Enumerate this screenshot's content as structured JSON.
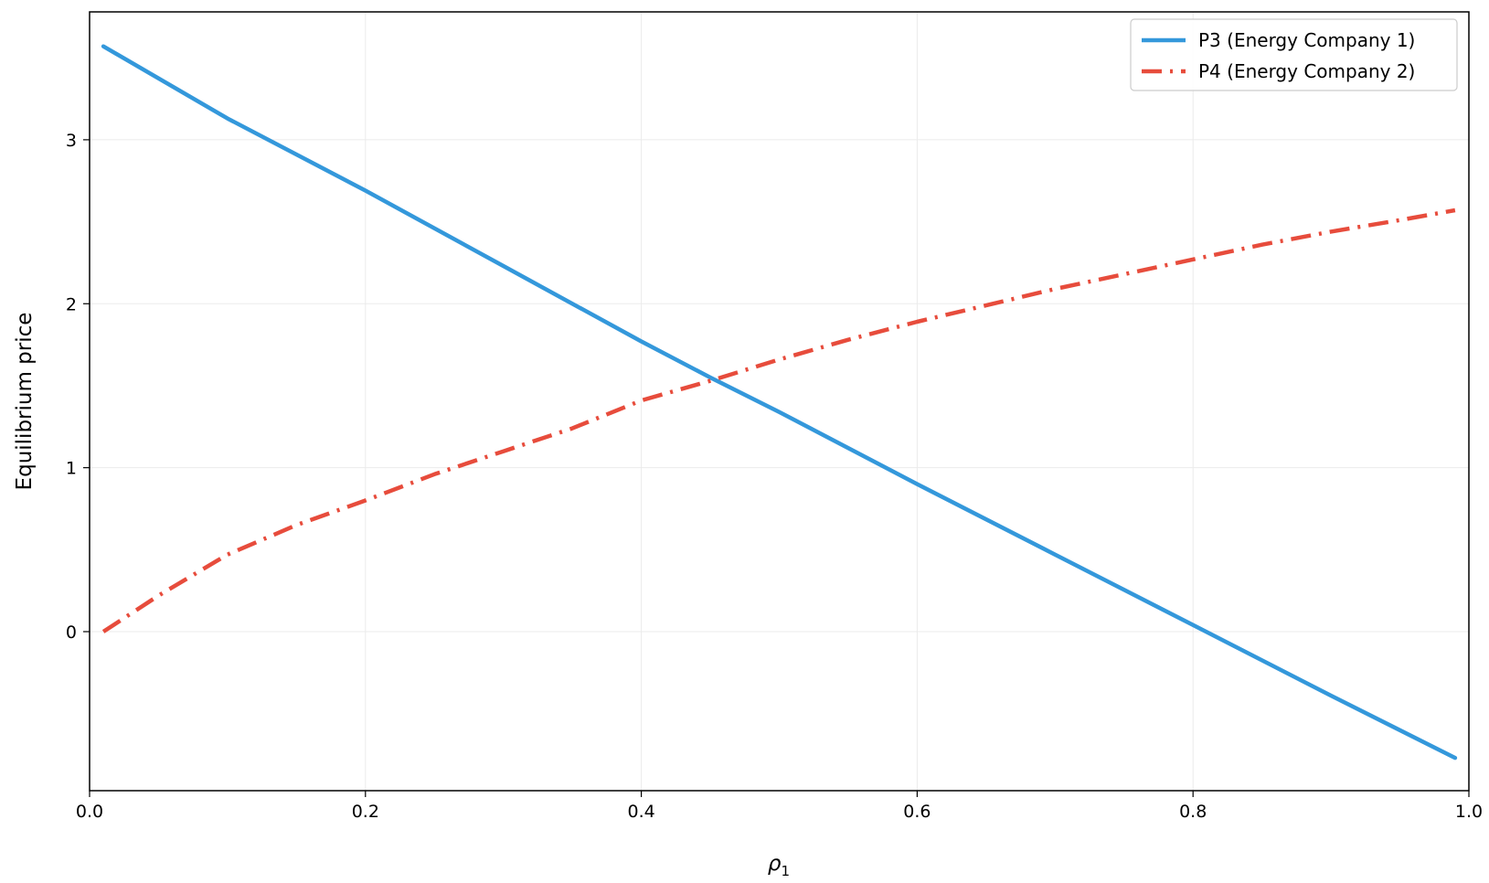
{
  "chart_data": {
    "type": "line",
    "title": "",
    "xlabel": "ρ",
    "xlabel_subscript": "1",
    "ylabel": "Equilibrium price",
    "xlim": [
      0.0,
      1.0
    ],
    "ylim": [
      -0.97,
      3.78
    ],
    "x_ticks": [
      0.0,
      0.2,
      0.4,
      0.6,
      0.8,
      1.0
    ],
    "x_tick_labels": [
      "0.0",
      "0.2",
      "0.4",
      "0.6",
      "0.8",
      "1.0"
    ],
    "y_ticks": [
      0,
      1,
      2,
      3
    ],
    "y_tick_labels": [
      "0",
      "1",
      "2",
      "3"
    ],
    "grid": true,
    "legend_position": "top-right",
    "series": [
      {
        "name": "P3 (Energy Company 1)",
        "color": "#3498db",
        "style": "solid",
        "x": [
          0.01,
          0.1,
          0.2,
          0.3,
          0.4,
          0.45,
          0.5,
          0.6,
          0.7,
          0.8,
          0.9,
          0.99
        ],
        "y": [
          3.57,
          3.13,
          2.69,
          2.23,
          1.77,
          1.55,
          1.34,
          0.9,
          0.47,
          0.04,
          -0.39,
          -0.77
        ]
      },
      {
        "name": "P4 (Energy Company 2)",
        "color": "#e74c3c",
        "style": "dashdot",
        "x": [
          0.01,
          0.05,
          0.1,
          0.15,
          0.2,
          0.25,
          0.3,
          0.35,
          0.4,
          0.45,
          0.5,
          0.55,
          0.6,
          0.65,
          0.7,
          0.75,
          0.8,
          0.85,
          0.9,
          0.95,
          0.99
        ],
        "y": [
          0.0,
          0.22,
          0.47,
          0.65,
          0.8,
          0.96,
          1.1,
          1.24,
          1.41,
          1.53,
          1.66,
          1.78,
          1.89,
          1.99,
          2.09,
          2.18,
          2.27,
          2.36,
          2.44,
          2.51,
          2.57
        ]
      }
    ]
  }
}
